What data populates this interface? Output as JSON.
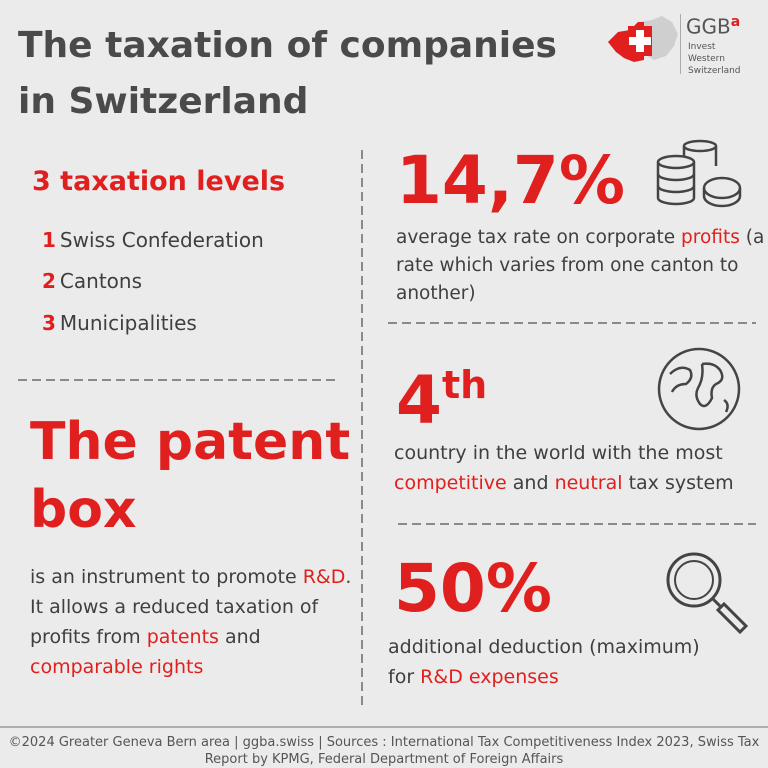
{
  "header": {
    "title": "The taxation of companies in Switzerland",
    "logo": {
      "name": "GGB",
      "superscript": "a",
      "tagline": [
        "Invest",
        "Western",
        "Switzerland"
      ]
    }
  },
  "levels": {
    "title": "3 taxation levels",
    "items": [
      {
        "number": "1",
        "label": "Swiss Confederation"
      },
      {
        "number": "2",
        "label": "Cantons"
      },
      {
        "number": "3",
        "label": "Municipalities"
      }
    ]
  },
  "patent_box": {
    "title": "The patent box",
    "description": [
      {
        "text": "is an instrument to promote ",
        "accent": false
      },
      {
        "text": "R&D",
        "accent": true
      },
      {
        "text": ". It allows a reduced taxation of profits from ",
        "accent": false
      },
      {
        "text": "patents",
        "accent": true
      },
      {
        "text": " and ",
        "accent": false
      },
      {
        "text": "comparable rights",
        "accent": true
      }
    ]
  },
  "stats": [
    {
      "value": "14,7%",
      "description": [
        {
          "text": "average tax rate on corporate ",
          "accent": false
        },
        {
          "text": "profits",
          "accent": true
        },
        {
          "text": " (a rate which varies from one canton to another)",
          "accent": false
        }
      ]
    },
    {
      "value": "4",
      "suffix": "th",
      "description": [
        {
          "text": "country in the world with the most ",
          "accent": false
        },
        {
          "text": "competitive",
          "accent": true
        },
        {
          "text": " and ",
          "accent": false
        },
        {
          "text": "neutral",
          "accent": true
        },
        {
          "text": " tax system",
          "accent": false
        }
      ]
    },
    {
      "value": "50%",
      "description": [
        {
          "text": "additional deduction (maximum) for ",
          "accent": false
        },
        {
          "text": "R&D expenses",
          "accent": true
        }
      ]
    }
  ],
  "footer": "©2024 Greater Geneva Bern area | ggba.swiss | Sources : International Tax Competitiveness Index 2023, Swiss Tax Report by KPMG, Federal Department of Foreign Affairs"
}
